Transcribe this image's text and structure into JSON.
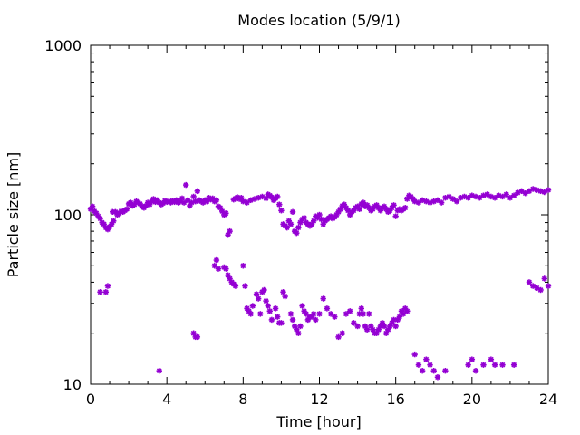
{
  "chart_data": {
    "type": "scatter",
    "title": "Modes location (5/9/1)",
    "xlabel": "Time [hour]",
    "ylabel": "Particle size [nm]",
    "xlim": [
      0,
      24
    ],
    "ylim": [
      10,
      1000
    ],
    "yscale": "log",
    "grid": false,
    "x_ticks": [
      "0",
      "4",
      "8",
      "12",
      "16",
      "20",
      "24"
    ],
    "y_ticks": [
      "10",
      "100",
      "1000"
    ],
    "marker_color": "#9400d3",
    "series": [
      {
        "points": [
          [
            0.0,
            108
          ],
          [
            0.1,
            112
          ],
          [
            0.2,
            105
          ],
          [
            0.3,
            102
          ],
          [
            0.4,
            98
          ],
          [
            0.5,
            95
          ],
          [
            0.6,
            90
          ],
          [
            0.7,
            88
          ],
          [
            0.8,
            84
          ],
          [
            0.9,
            82
          ],
          [
            1.0,
            85
          ],
          [
            1.1,
            88
          ],
          [
            1.15,
            104
          ],
          [
            1.2,
            92
          ],
          [
            1.3,
            104
          ],
          [
            1.4,
            100
          ],
          [
            1.5,
            102
          ],
          [
            1.6,
            105
          ],
          [
            1.7,
            104
          ],
          [
            1.8,
            106
          ],
          [
            1.9,
            108
          ],
          [
            2.0,
            116
          ],
          [
            2.1,
            118
          ],
          [
            2.2,
            113
          ],
          [
            2.3,
            115
          ],
          [
            2.4,
            120
          ],
          [
            2.5,
            118
          ],
          [
            2.6,
            116
          ],
          [
            2.7,
            112
          ],
          [
            2.8,
            110
          ],
          [
            2.9,
            113
          ],
          [
            3.0,
            118
          ],
          [
            3.1,
            115
          ],
          [
            3.2,
            120
          ],
          [
            3.3,
            124
          ],
          [
            3.4,
            119
          ],
          [
            3.5,
            122
          ],
          [
            3.6,
            118
          ],
          [
            3.7,
            115
          ],
          [
            3.8,
            117
          ],
          [
            3.9,
            121
          ],
          [
            4.0,
            119
          ],
          [
            4.1,
            120
          ],
          [
            4.2,
            118
          ],
          [
            4.3,
            121
          ],
          [
            4.4,
            119
          ],
          [
            4.5,
            122
          ],
          [
            4.6,
            118
          ],
          [
            4.7,
            120
          ],
          [
            4.8,
            125
          ],
          [
            4.9,
            118
          ],
          [
            5.0,
            150
          ],
          [
            5.1,
            122
          ],
          [
            5.2,
            113
          ],
          [
            5.3,
            118
          ],
          [
            5.4,
            128
          ],
          [
            5.5,
            120
          ],
          [
            5.6,
            138
          ],
          [
            5.7,
            122
          ],
          [
            5.8,
            120
          ],
          [
            5.9,
            118
          ],
          [
            6.0,
            122
          ],
          [
            6.1,
            120
          ],
          [
            6.2,
            126
          ],
          [
            6.3,
            123
          ],
          [
            6.4,
            125
          ],
          [
            6.5,
            120
          ],
          [
            6.6,
            122
          ],
          [
            6.7,
            112
          ],
          [
            6.8,
            110
          ],
          [
            6.9,
            105
          ],
          [
            7.0,
            100
          ],
          [
            7.1,
            102
          ],
          [
            7.2,
            76
          ],
          [
            7.3,
            80
          ],
          [
            7.5,
            123
          ],
          [
            7.6,
            125
          ],
          [
            7.7,
            127
          ],
          [
            7.8,
            124
          ],
          [
            7.9,
            126
          ],
          [
            8.0,
            120
          ],
          [
            8.2,
            118
          ],
          [
            8.4,
            122
          ],
          [
            8.6,
            124
          ],
          [
            8.8,
            126
          ],
          [
            9.0,
            128
          ],
          [
            9.2,
            125
          ],
          [
            9.3,
            132
          ],
          [
            9.4,
            130
          ],
          [
            9.5,
            127
          ],
          [
            9.6,
            122
          ],
          [
            9.7,
            125
          ],
          [
            9.8,
            128
          ],
          [
            9.9,
            115
          ],
          [
            10.0,
            106
          ],
          [
            10.1,
            88
          ],
          [
            10.2,
            86
          ],
          [
            10.3,
            84
          ],
          [
            10.4,
            92
          ],
          [
            10.5,
            88
          ],
          [
            10.6,
            104
          ],
          [
            10.7,
            80
          ],
          [
            10.8,
            78
          ],
          [
            10.9,
            84
          ],
          [
            11.0,
            90
          ],
          [
            11.1,
            94
          ],
          [
            11.2,
            96
          ],
          [
            11.3,
            90
          ],
          [
            11.4,
            88
          ],
          [
            11.5,
            86
          ],
          [
            11.6,
            88
          ],
          [
            11.7,
            92
          ],
          [
            11.8,
            98
          ],
          [
            11.9,
            96
          ],
          [
            12.0,
            100
          ],
          [
            12.1,
            94
          ],
          [
            12.2,
            88
          ],
          [
            12.3,
            92
          ],
          [
            12.4,
            94
          ],
          [
            12.5,
            96
          ],
          [
            12.6,
            98
          ],
          [
            12.7,
            95
          ],
          [
            12.8,
            97
          ],
          [
            12.9,
            100
          ],
          [
            13.0,
            104
          ],
          [
            13.1,
            108
          ],
          [
            13.2,
            113
          ],
          [
            13.3,
            115
          ],
          [
            13.4,
            110
          ],
          [
            13.5,
            106
          ],
          [
            13.6,
            100
          ],
          [
            13.7,
            104
          ],
          [
            13.8,
            106
          ],
          [
            13.9,
            110
          ],
          [
            14.0,
            112
          ],
          [
            14.1,
            108
          ],
          [
            14.2,
            116
          ],
          [
            14.3,
            118
          ],
          [
            14.4,
            112
          ],
          [
            14.5,
            114
          ],
          [
            14.6,
            110
          ],
          [
            14.7,
            106
          ],
          [
            14.8,
            108
          ],
          [
            14.9,
            112
          ],
          [
            15.0,
            114
          ],
          [
            15.1,
            110
          ],
          [
            15.2,
            106
          ],
          [
            15.3,
            110
          ],
          [
            15.4,
            112
          ],
          [
            15.5,
            108
          ],
          [
            15.6,
            104
          ],
          [
            15.7,
            106
          ],
          [
            15.8,
            110
          ],
          [
            15.9,
            114
          ],
          [
            16.0,
            98
          ],
          [
            16.1,
            106
          ],
          [
            16.2,
            108
          ],
          [
            16.3,
            106
          ],
          [
            16.4,
            108
          ],
          [
            16.5,
            110
          ],
          [
            16.6,
            124
          ],
          [
            16.7,
            130
          ],
          [
            16.8,
            128
          ],
          [
            16.9,
            124
          ],
          [
            17.0,
            120
          ],
          [
            17.2,
            118
          ],
          [
            17.4,
            122
          ],
          [
            17.6,
            120
          ],
          [
            17.8,
            118
          ],
          [
            18.0,
            120
          ],
          [
            18.2,
            122
          ],
          [
            18.4,
            118
          ],
          [
            18.6,
            126
          ],
          [
            18.8,
            128
          ],
          [
            19.0,
            124
          ],
          [
            19.2,
            120
          ],
          [
            19.4,
            126
          ],
          [
            19.6,
            128
          ],
          [
            19.8,
            126
          ],
          [
            20.0,
            130
          ],
          [
            20.2,
            128
          ],
          [
            20.4,
            126
          ],
          [
            20.6,
            130
          ],
          [
            20.8,
            132
          ],
          [
            21.0,
            128
          ],
          [
            21.2,
            126
          ],
          [
            21.4,
            130
          ],
          [
            21.6,
            128
          ],
          [
            21.8,
            132
          ],
          [
            22.0,
            126
          ],
          [
            22.2,
            130
          ],
          [
            22.4,
            135
          ],
          [
            22.6,
            138
          ],
          [
            22.8,
            134
          ],
          [
            23.0,
            138
          ],
          [
            23.2,
            142
          ],
          [
            23.4,
            140
          ],
          [
            23.6,
            138
          ],
          [
            23.8,
            136
          ],
          [
            24.0,
            140
          ]
        ]
      },
      {
        "points": [
          [
            0.5,
            35
          ],
          [
            0.8,
            35
          ],
          [
            0.9,
            38
          ],
          [
            3.6,
            12
          ],
          [
            5.4,
            20
          ],
          [
            5.5,
            19
          ],
          [
            5.6,
            19
          ],
          [
            6.5,
            50
          ],
          [
            6.6,
            54
          ],
          [
            6.7,
            48
          ],
          [
            7.0,
            49
          ],
          [
            7.1,
            48
          ],
          [
            7.2,
            44
          ],
          [
            7.3,
            42
          ],
          [
            7.4,
            40
          ],
          [
            7.5,
            39
          ],
          [
            7.6,
            38
          ],
          [
            8.0,
            50
          ],
          [
            8.1,
            38
          ],
          [
            8.2,
            28
          ],
          [
            8.3,
            27
          ],
          [
            8.4,
            26
          ],
          [
            8.5,
            29
          ],
          [
            8.7,
            34
          ],
          [
            8.8,
            32
          ],
          [
            8.9,
            26
          ],
          [
            9.0,
            35
          ],
          [
            9.1,
            36
          ],
          [
            9.2,
            31
          ],
          [
            9.3,
            29
          ],
          [
            9.4,
            27
          ],
          [
            9.5,
            24
          ],
          [
            9.7,
            28
          ],
          [
            9.8,
            25
          ],
          [
            9.9,
            23
          ],
          [
            10.0,
            23
          ],
          [
            10.1,
            35
          ],
          [
            10.2,
            33
          ],
          [
            10.5,
            26
          ],
          [
            10.6,
            24
          ],
          [
            10.7,
            22
          ],
          [
            10.8,
            21
          ],
          [
            10.9,
            20
          ],
          [
            11.0,
            22
          ],
          [
            11.1,
            29
          ],
          [
            11.2,
            27
          ],
          [
            11.3,
            26
          ],
          [
            11.4,
            24
          ],
          [
            11.5,
            25
          ],
          [
            11.6,
            25
          ],
          [
            11.7,
            26
          ],
          [
            11.8,
            24
          ],
          [
            12.0,
            26
          ],
          [
            12.2,
            32
          ],
          [
            12.4,
            28
          ],
          [
            12.6,
            26
          ],
          [
            12.8,
            25
          ],
          [
            13.0,
            19
          ],
          [
            13.2,
            20
          ],
          [
            13.4,
            26
          ],
          [
            13.6,
            27
          ],
          [
            13.8,
            23
          ],
          [
            14.0,
            22
          ],
          [
            14.1,
            26
          ],
          [
            14.2,
            28
          ],
          [
            14.3,
            26
          ],
          [
            14.4,
            22
          ],
          [
            14.5,
            21
          ],
          [
            14.6,
            26
          ],
          [
            14.7,
            22
          ],
          [
            14.8,
            21
          ],
          [
            14.9,
            20
          ],
          [
            15.0,
            20
          ],
          [
            15.1,
            21
          ],
          [
            15.2,
            22
          ],
          [
            15.3,
            23
          ],
          [
            15.4,
            22
          ],
          [
            15.5,
            20
          ],
          [
            15.6,
            21
          ],
          [
            15.7,
            22
          ],
          [
            15.8,
            23
          ],
          [
            15.9,
            24
          ],
          [
            16.0,
            22
          ],
          [
            16.1,
            24
          ],
          [
            16.2,
            25
          ],
          [
            16.3,
            27
          ],
          [
            16.4,
            26
          ],
          [
            16.5,
            28
          ],
          [
            16.6,
            27
          ],
          [
            17.0,
            15
          ],
          [
            17.2,
            13
          ],
          [
            17.4,
            12
          ],
          [
            17.6,
            14
          ],
          [
            17.8,
            13
          ],
          [
            18.0,
            12
          ],
          [
            18.2,
            11
          ],
          [
            18.6,
            12
          ],
          [
            19.8,
            13
          ],
          [
            20.0,
            14
          ],
          [
            20.2,
            12
          ],
          [
            20.6,
            13
          ],
          [
            21.0,
            14
          ],
          [
            21.2,
            13
          ],
          [
            21.6,
            13
          ],
          [
            22.2,
            13
          ],
          [
            23.0,
            40
          ],
          [
            23.2,
            38
          ],
          [
            23.4,
            37
          ],
          [
            23.6,
            36
          ],
          [
            23.8,
            42
          ],
          [
            24.0,
            38
          ]
        ]
      }
    ]
  }
}
